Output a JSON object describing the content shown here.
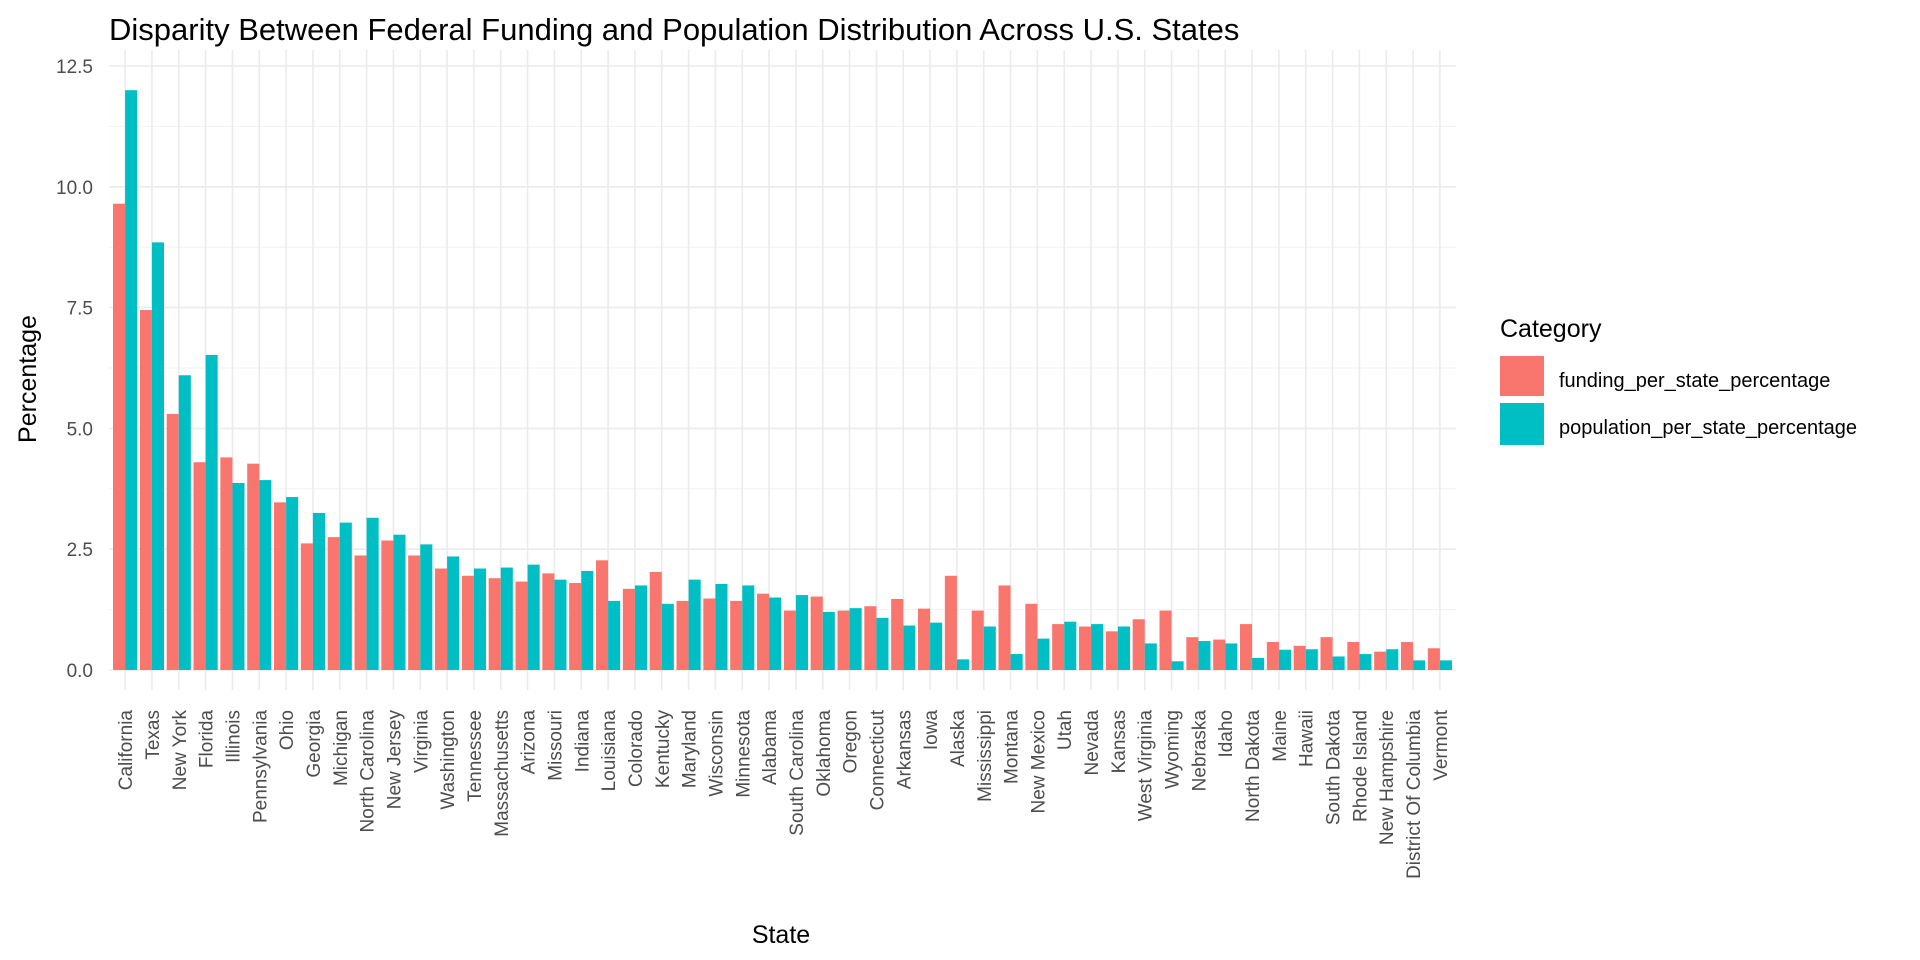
{
  "chart_data": {
    "type": "bar",
    "title": "Disparity Between Federal Funding and Population Distribution Across U.S. States",
    "xlabel": "State",
    "ylabel": "Percentage",
    "ylim": [
      -0.45,
      12.5
    ],
    "yticks": [
      "0.0",
      "2.5",
      "5.0",
      "7.5",
      "10.0",
      "12.5"
    ],
    "grid": true,
    "legend_title": "Category",
    "legend_position": "right",
    "categories": [
      "California",
      "Texas",
      "New York",
      "Florida",
      "Illinois",
      "Pennsylvania",
      "Ohio",
      "Georgia",
      "Michigan",
      "North Carolina",
      "New Jersey",
      "Virginia",
      "Washington",
      "Tennessee",
      "Massachusetts",
      "Arizona",
      "Missouri",
      "Indiana",
      "Louisiana",
      "Colorado",
      "Kentucky",
      "Maryland",
      "Wisconsin",
      "Minnesota",
      "Alabama",
      "South Carolina",
      "Oklahoma",
      "Oregon",
      "Connecticut",
      "Arkansas",
      "Iowa",
      "Alaska",
      "Mississippi",
      "Montana",
      "New Mexico",
      "Utah",
      "Nevada",
      "Kansas",
      "West Virginia",
      "Wyoming",
      "Nebraska",
      "Idaho",
      "North Dakota",
      "Maine",
      "Hawaii",
      "South Dakota",
      "Rhode Island",
      "New Hampshire",
      "District Of Columbia",
      "Vermont"
    ],
    "series": [
      {
        "name": "funding_per_state_percentage",
        "color": "#F8766D",
        "values": [
          9.65,
          7.45,
          5.3,
          4.3,
          4.4,
          4.27,
          3.47,
          2.62,
          2.75,
          2.37,
          2.68,
          2.37,
          2.1,
          1.95,
          1.9,
          1.83,
          2.0,
          1.8,
          2.27,
          1.68,
          2.03,
          1.43,
          1.48,
          1.43,
          1.58,
          1.23,
          1.52,
          1.23,
          1.32,
          1.47,
          1.27,
          1.95,
          1.23,
          1.75,
          1.37,
          0.95,
          0.9,
          0.8,
          1.05,
          1.23,
          0.68,
          0.63,
          0.95,
          0.58,
          0.5,
          0.68,
          0.58,
          0.38,
          0.58,
          0.45
        ]
      },
      {
        "name": "population_per_state_percentage",
        "color": "#00BFC4",
        "values": [
          12.0,
          8.85,
          6.1,
          6.52,
          3.87,
          3.93,
          3.58,
          3.25,
          3.05,
          3.15,
          2.8,
          2.6,
          2.35,
          2.1,
          2.12,
          2.18,
          1.87,
          2.05,
          1.43,
          1.75,
          1.37,
          1.87,
          1.78,
          1.75,
          1.5,
          1.55,
          1.2,
          1.28,
          1.08,
          0.92,
          0.98,
          0.22,
          0.9,
          0.33,
          0.65,
          1.0,
          0.95,
          0.9,
          0.55,
          0.18,
          0.6,
          0.55,
          0.25,
          0.42,
          0.43,
          0.28,
          0.33,
          0.43,
          0.2,
          0.2
        ]
      }
    ]
  }
}
